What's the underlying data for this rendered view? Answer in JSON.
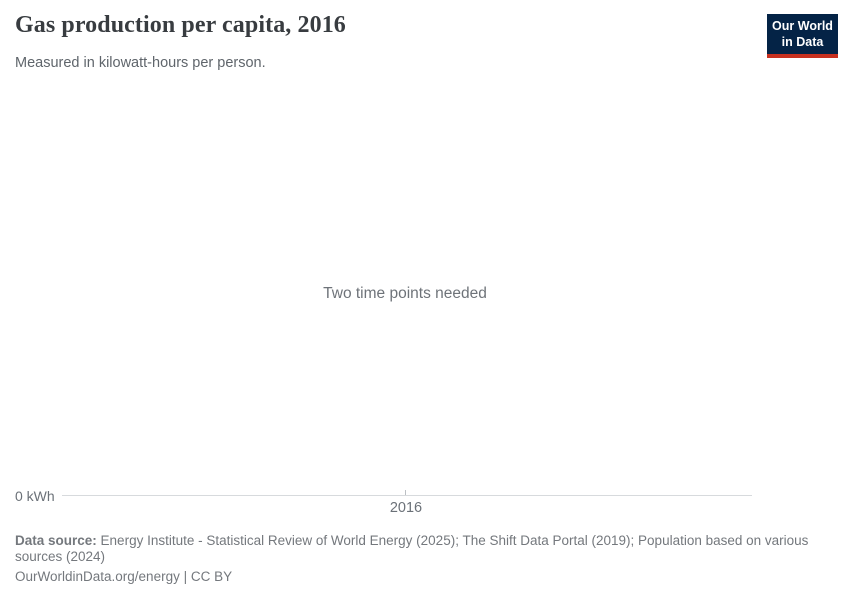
{
  "header": {
    "title": "Gas production per capita, 2016",
    "subtitle": "Measured in kilowatt-hours per person."
  },
  "logo": {
    "line1": "Our World",
    "line2": "in Data",
    "background_color": "#042346",
    "accent_color": "#c7301f"
  },
  "chart_data": {
    "type": "line",
    "title": "Gas production per capita, 2016",
    "subtitle": "Measured in kilowatt-hours per person.",
    "message": "Two time points needed",
    "series": [],
    "x_ticks": [
      "2016"
    ],
    "y_ticks": [
      "0 kWh"
    ],
    "grid": false,
    "axis_line_color": "#d7dadd",
    "tick_label_color": "#6b7178"
  },
  "footer": {
    "data_source_label": "Data source:",
    "data_source_text": "Energy Institute - Statistical Review of World Energy (2025); The Shift Data Portal (2019); Population based on various sources (2024)",
    "citation": "OurWorldinData.org/energy | CC BY"
  }
}
